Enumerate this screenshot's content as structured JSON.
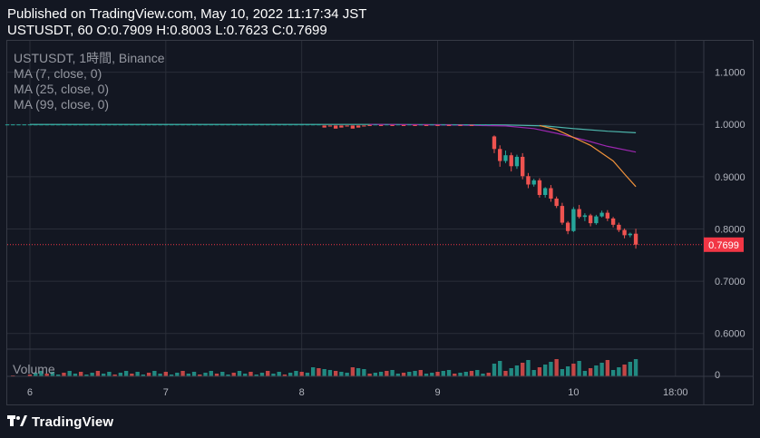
{
  "header": {
    "published": "Published on TradingView.com, May 10, 2022 11:17:34 JST",
    "ohlc": "USTUSDT, 60 O:0.7909 H:0.8003 L:0.7623 C:0.7699"
  },
  "legend": {
    "symbol": "USTUSDT, 1時間, Binance",
    "ma7": "MA (7, close, 0)",
    "ma25": "MA (25, close, 0)",
    "ma99": "MA (99, close, 0)",
    "volume": "Volume"
  },
  "footer": {
    "brand": "TradingView"
  },
  "colors": {
    "up": "#26a69a",
    "down": "#ef5350",
    "ma7": "#f0923b",
    "ma25": "#9c27b0",
    "ma99": "#4db6ac",
    "background": "#131722",
    "grid": "#2a2e39",
    "price_label": "#f23645"
  },
  "chart_data": {
    "type": "candlestick",
    "symbol": "USTUSDT",
    "interval": "60",
    "exchange": "Binance",
    "x_axis": {
      "ticks": [
        {
          "label": "6",
          "hour": 0
        },
        {
          "label": "7",
          "hour": 24
        },
        {
          "label": "8",
          "hour": 48
        },
        {
          "label": "9",
          "hour": 72
        },
        {
          "label": "10",
          "hour": 96
        },
        {
          "label": "18:00",
          "hour": 114
        }
      ],
      "range_hours": [
        -4,
        119
      ]
    },
    "y_axis": {
      "ticks": [
        "1.1000",
        "1.0000",
        "0.9000",
        "0.8000",
        "0.7000",
        "0.6000"
      ],
      "range": [
        0.57,
        1.16
      ]
    },
    "last_price": "0.7699",
    "last_price_value": 0.7699,
    "volume_axis": {
      "ticks": [
        "0"
      ]
    },
    "candles": [
      {
        "h": 82,
        "o": 0.977,
        "c": 0.953,
        "hi": 0.979,
        "lo": 0.945
      },
      {
        "h": 83,
        "o": 0.953,
        "c": 0.93,
        "hi": 0.96,
        "lo": 0.919
      },
      {
        "h": 84,
        "o": 0.93,
        "c": 0.941,
        "hi": 0.95,
        "lo": 0.926
      },
      {
        "h": 85,
        "o": 0.941,
        "c": 0.92,
        "hi": 0.946,
        "lo": 0.91
      },
      {
        "h": 86,
        "o": 0.92,
        "c": 0.938,
        "hi": 0.942,
        "lo": 0.915
      },
      {
        "h": 87,
        "o": 0.938,
        "c": 0.901,
        "hi": 0.945,
        "lo": 0.895
      },
      {
        "h": 88,
        "o": 0.901,
        "c": 0.885,
        "hi": 0.907,
        "lo": 0.878
      },
      {
        "h": 89,
        "o": 0.885,
        "c": 0.893,
        "hi": 0.896,
        "lo": 0.881
      },
      {
        "h": 90,
        "o": 0.893,
        "c": 0.865,
        "hi": 0.897,
        "lo": 0.86
      },
      {
        "h": 91,
        "o": 0.865,
        "c": 0.878,
        "hi": 0.88,
        "lo": 0.86
      },
      {
        "h": 92,
        "o": 0.878,
        "c": 0.858,
        "hi": 0.884,
        "lo": 0.852
      },
      {
        "h": 93,
        "o": 0.858,
        "c": 0.844,
        "hi": 0.862,
        "lo": 0.84
      },
      {
        "h": 94,
        "o": 0.844,
        "c": 0.812,
        "hi": 0.85,
        "lo": 0.808
      },
      {
        "h": 95,
        "o": 0.812,
        "c": 0.796,
        "hi": 0.815,
        "lo": 0.79
      },
      {
        "h": 96,
        "o": 0.796,
        "c": 0.838,
        "hi": 0.842,
        "lo": 0.794
      },
      {
        "h": 97,
        "o": 0.838,
        "c": 0.823,
        "hi": 0.846,
        "lo": 0.82
      },
      {
        "h": 98,
        "o": 0.823,
        "c": 0.826,
        "hi": 0.83,
        "lo": 0.815
      },
      {
        "h": 99,
        "o": 0.826,
        "c": 0.811,
        "hi": 0.829,
        "lo": 0.805
      },
      {
        "h": 100,
        "o": 0.811,
        "c": 0.824,
        "hi": 0.827,
        "lo": 0.808
      },
      {
        "h": 101,
        "o": 0.824,
        "c": 0.831,
        "hi": 0.835,
        "lo": 0.822
      },
      {
        "h": 102,
        "o": 0.831,
        "c": 0.82,
        "hi": 0.836,
        "lo": 0.815
      },
      {
        "h": 103,
        "o": 0.82,
        "c": 0.808,
        "hi": 0.823,
        "lo": 0.803
      },
      {
        "h": 104,
        "o": 0.808,
        "c": 0.798,
        "hi": 0.812,
        "lo": 0.794
      },
      {
        "h": 105,
        "o": 0.798,
        "c": 0.788,
        "hi": 0.801,
        "lo": 0.782
      },
      {
        "h": 106,
        "o": 0.788,
        "c": 0.7909,
        "hi": 0.793,
        "lo": 0.784
      },
      {
        "h": 107,
        "o": 0.7909,
        "c": 0.7699,
        "hi": 0.8003,
        "lo": 0.7623
      }
    ],
    "ma7": [
      [
        90,
        0.998
      ],
      [
        93,
        0.99
      ],
      [
        95,
        0.98
      ],
      [
        97,
        0.97
      ],
      [
        99,
        0.96
      ],
      [
        101,
        0.945
      ],
      [
        103,
        0.93
      ],
      [
        105,
        0.905
      ],
      [
        107,
        0.881
      ]
    ],
    "ma25": [
      [
        60,
        1.0
      ],
      [
        74,
        0.999
      ],
      [
        84,
        0.997
      ],
      [
        89,
        0.992
      ],
      [
        93,
        0.983
      ],
      [
        98,
        0.97
      ],
      [
        102,
        0.958
      ],
      [
        107,
        0.947
      ]
    ],
    "ma99": [
      [
        0,
        1.0
      ],
      [
        60,
        1.0
      ],
      [
        84,
        0.999
      ],
      [
        91,
        0.997
      ],
      [
        96,
        0.992
      ],
      [
        102,
        0.987
      ],
      [
        107,
        0.984
      ]
    ]
  }
}
